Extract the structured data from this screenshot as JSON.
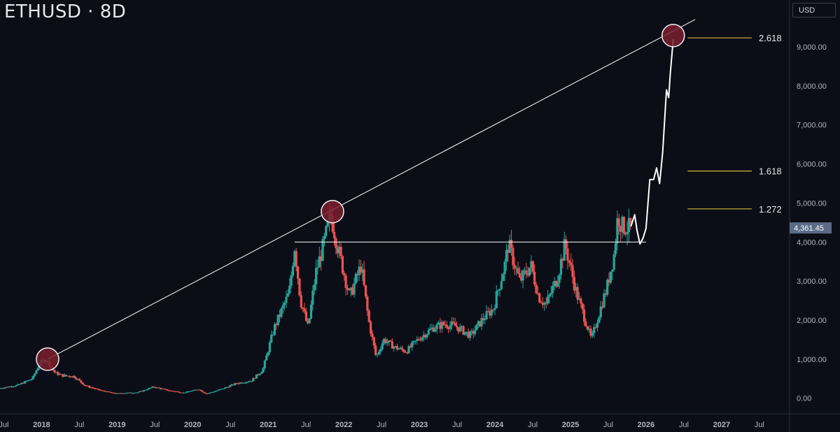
{
  "header": {
    "title": "ETHUSD · 8D",
    "currency": "USD"
  },
  "colors": {
    "background": "#0b0e17",
    "up": "#26a69a",
    "down": "#ef5350",
    "fib": "#d4b53c",
    "marker": "#7a1f2e",
    "line": "#ffffff",
    "price_tag": "#5b6b86"
  },
  "chart_data": {
    "type": "candlestick",
    "x_unit": "year",
    "ylim": [
      -400,
      10200
    ],
    "xlim": [
      2017.45,
      2027.9
    ],
    "y_ticks": [
      0,
      1000,
      2000,
      3000,
      4000,
      5000,
      6000,
      7000,
      8000,
      9000
    ],
    "y_tick_labels": [
      "0.00",
      "1,000.00",
      "2,000.00",
      "3,000.00",
      "4,000.00",
      "5,000.00",
      "6,000.00",
      "7,000.00",
      "8,000.00",
      "9,000.00"
    ],
    "x_ticks": [
      {
        "x": 2017.5,
        "label": "Jul",
        "bold": false
      },
      {
        "x": 2018.0,
        "label": "2018",
        "bold": true
      },
      {
        "x": 2018.5,
        "label": "Jul",
        "bold": false
      },
      {
        "x": 2019.0,
        "label": "2019",
        "bold": true
      },
      {
        "x": 2019.5,
        "label": "Jul",
        "bold": false
      },
      {
        "x": 2020.0,
        "label": "2020",
        "bold": true
      },
      {
        "x": 2020.5,
        "label": "Jul",
        "bold": false
      },
      {
        "x": 2021.0,
        "label": "2021",
        "bold": true
      },
      {
        "x": 2021.5,
        "label": "Jul",
        "bold": false
      },
      {
        "x": 2022.0,
        "label": "2022",
        "bold": true
      },
      {
        "x": 2022.5,
        "label": "Jul",
        "bold": false
      },
      {
        "x": 2023.0,
        "label": "2023",
        "bold": true
      },
      {
        "x": 2023.5,
        "label": "Jul",
        "bold": false
      },
      {
        "x": 2024.0,
        "label": "2024",
        "bold": true
      },
      {
        "x": 2024.5,
        "label": "Jul",
        "bold": false
      },
      {
        "x": 2025.0,
        "label": "2025",
        "bold": true
      },
      {
        "x": 2025.5,
        "label": "Jul",
        "bold": false
      },
      {
        "x": 2026.0,
        "label": "2026",
        "bold": true
      },
      {
        "x": 2026.5,
        "label": "Jul",
        "bold": false
      },
      {
        "x": 2027.0,
        "label": "2027",
        "bold": true
      },
      {
        "x": 2027.5,
        "label": "Jul",
        "bold": false
      }
    ],
    "price_path": [
      [
        2017.45,
        250
      ],
      [
        2017.7,
        330
      ],
      [
        2017.9,
        500
      ],
      [
        2018.0,
        900
      ],
      [
        2018.08,
        1000
      ],
      [
        2018.2,
        650
      ],
      [
        2018.3,
        580
      ],
      [
        2018.45,
        560
      ],
      [
        2018.6,
        320
      ],
      [
        2018.8,
        200
      ],
      [
        2019.0,
        120
      ],
      [
        2019.3,
        150
      ],
      [
        2019.5,
        290
      ],
      [
        2019.7,
        200
      ],
      [
        2019.9,
        140
      ],
      [
        2020.1,
        230
      ],
      [
        2020.2,
        110
      ],
      [
        2020.4,
        230
      ],
      [
        2020.6,
        380
      ],
      [
        2020.8,
        450
      ],
      [
        2020.95,
        730
      ],
      [
        2021.1,
        1800
      ],
      [
        2021.3,
        2700
      ],
      [
        2021.37,
        3900
      ],
      [
        2021.45,
        2500
      ],
      [
        2021.55,
        1800
      ],
      [
        2021.65,
        3200
      ],
      [
        2021.75,
        3900
      ],
      [
        2021.85,
        4700
      ],
      [
        2021.95,
        3800
      ],
      [
        2022.1,
        2600
      ],
      [
        2022.25,
        3400
      ],
      [
        2022.35,
        2000
      ],
      [
        2022.45,
        1050
      ],
      [
        2022.55,
        1500
      ],
      [
        2022.7,
        1300
      ],
      [
        2022.85,
        1200
      ],
      [
        2023.0,
        1500
      ],
      [
        2023.2,
        1800
      ],
      [
        2023.35,
        1900
      ],
      [
        2023.5,
        1850
      ],
      [
        2023.7,
        1600
      ],
      [
        2023.85,
        2000
      ],
      [
        2024.0,
        2300
      ],
      [
        2024.15,
        3400
      ],
      [
        2024.2,
        3950
      ],
      [
        2024.35,
        3000
      ],
      [
        2024.5,
        3400
      ],
      [
        2024.6,
        2600
      ],
      [
        2024.7,
        2400
      ],
      [
        2024.85,
        3100
      ],
      [
        2024.95,
        3950
      ],
      [
        2025.1,
        2700
      ],
      [
        2025.25,
        1800
      ],
      [
        2025.3,
        1500
      ],
      [
        2025.45,
        2500
      ],
      [
        2025.5,
        2800
      ],
      [
        2025.6,
        3700
      ],
      [
        2025.65,
        4700
      ],
      [
        2025.7,
        4400
      ],
      [
        2025.8,
        4361
      ]
    ],
    "projection": [
      [
        2025.8,
        4400
      ],
      [
        2025.85,
        4700
      ],
      [
        2025.88,
        4300
      ],
      [
        2025.92,
        3950
      ],
      [
        2025.96,
        4100
      ],
      [
        2026.0,
        4350
      ],
      [
        2026.05,
        5600
      ],
      [
        2026.1,
        5600
      ],
      [
        2026.14,
        5900
      ],
      [
        2026.18,
        5500
      ],
      [
        2026.22,
        6300
      ],
      [
        2026.27,
        7900
      ],
      [
        2026.3,
        7700
      ],
      [
        2026.32,
        8300
      ],
      [
        2026.36,
        9200
      ]
    ],
    "trendline": {
      "from": [
        2018.08,
        1000
      ],
      "to": [
        2026.65,
        9700
      ]
    },
    "horizontal_resistance": {
      "y": 4000,
      "from_x": 2021.35,
      "to_x": 2026.0
    },
    "circles": [
      [
        2018.08,
        1000
      ],
      [
        2021.85,
        4780
      ],
      [
        2026.36,
        9290
      ]
    ],
    "fib_levels": [
      {
        "label": "2.618",
        "y": 9230,
        "x_from": 2026.55,
        "x_to": 2027.4
      },
      {
        "label": "1.618",
        "y": 5820,
        "x_from": 2026.55,
        "x_to": 2027.4
      },
      {
        "label": "1.272",
        "y": 4850,
        "x_from": 2026.55,
        "x_to": 2027.4
      }
    ],
    "last_price": {
      "value": 4361.45,
      "label": "4,361.45"
    }
  }
}
